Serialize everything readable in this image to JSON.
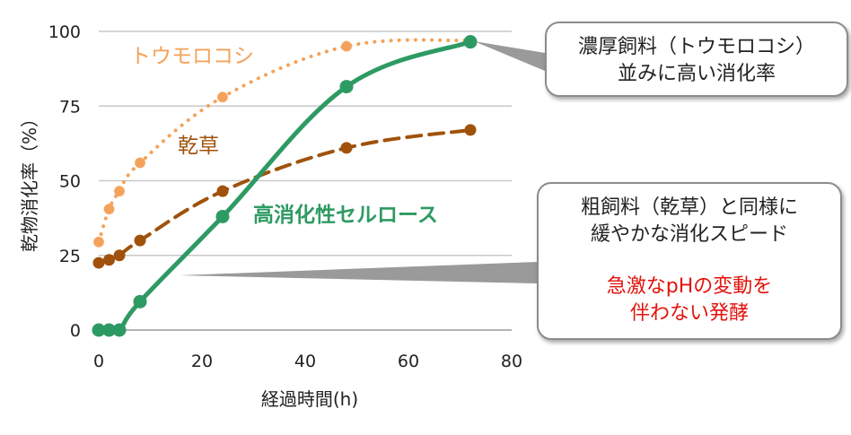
{
  "chart_data": {
    "type": "line",
    "xlabel": "経過時間(h)",
    "ylabel": "乾物消化率（%）",
    "xlim": [
      0,
      80
    ],
    "ylim": [
      0,
      100
    ],
    "x_ticks": [
      "0",
      "20",
      "40",
      "60",
      "80"
    ],
    "y_ticks": [
      "0",
      "25",
      "50",
      "75",
      "100"
    ],
    "grid": "horizontal",
    "series": [
      {
        "name": "トウモロコシ",
        "color": "#f4a25a",
        "style": "dotted",
        "x": [
          0,
          2,
          4,
          8,
          24,
          48,
          72
        ],
        "y": [
          29.5,
          40.5,
          46.5,
          56,
          78,
          95,
          97
        ]
      },
      {
        "name": "乾草",
        "color": "#a0520c",
        "style": "dashed",
        "x": [
          0,
          2,
          4,
          8,
          24,
          48,
          72
        ],
        "y": [
          22.5,
          23.5,
          25,
          30,
          46.5,
          61,
          67
        ]
      },
      {
        "name": "高消化性セルロース",
        "color": "#2e9a63",
        "style": "solid",
        "x": [
          0,
          2,
          4,
          8,
          24,
          48,
          72
        ],
        "y": [
          0,
          0,
          0,
          9.5,
          38,
          81.5,
          96.5
        ]
      }
    ],
    "annotations": [
      {
        "lines": [
          "濃厚飼料（トウモロコシ）",
          "並みに高い消化率"
        ]
      },
      {
        "lines": [
          "粗飼料（乾草）と同様に",
          "緩やかな消化スピード"
        ],
        "red_lines": [
          "急激なpHの変動を",
          "伴わない発酵"
        ]
      }
    ]
  }
}
